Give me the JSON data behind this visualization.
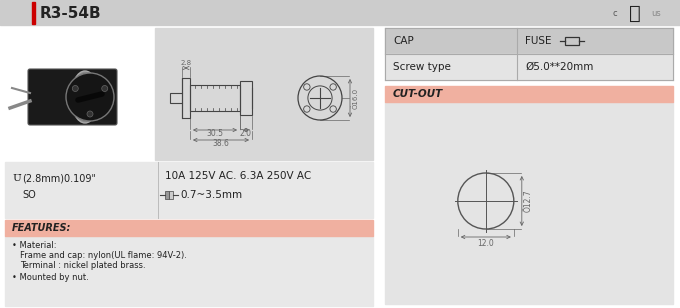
{
  "title": "R3-54B",
  "bg_color": "#f5f5f5",
  "header_bg": "#cccccc",
  "panel_bg": "#d8d8d8",
  "section_bg": "#e8e8e8",
  "white_bg": "#ffffff",
  "features_header_bg": "#f0b0a0",
  "cutout_header_bg": "#f0b0a0",
  "accent_color": "#cc0000",
  "text_color": "#222222",
  "line_color": "#444444",
  "dim_line_color": "#666666",
  "table_header_bg": "#c8c8c8",
  "table_row_bg": "#e4e4e4",
  "specs_line1": "10A 125V AC. 6.3A 250V AC",
  "specs_line2": "0.7~3.5mm",
  "hole_size": "(2.8mm)0.109\"",
  "so_label": "SO",
  "cap_label": "CAP",
  "fuse_label": "FUSE",
  "cap_type": "Screw type",
  "fuse_size": "Ø5.0**20mm",
  "cutout_label": "CUT-OUT",
  "dim_305": "30.5",
  "dim_20": "2.0",
  "dim_386": "38.6",
  "dim_28": "2.8",
  "dim_160": "Ö16.0",
  "dim_127": "Ö12.7",
  "dim_120": "12.0",
  "features_title": "FEATURES:",
  "feat1": "Material:",
  "feat2": "Frame and cap: nylon(UL flame: 94V-2).",
  "feat3": "Terminal : nickel plated brass.",
  "feat4": "Mounted by nut."
}
